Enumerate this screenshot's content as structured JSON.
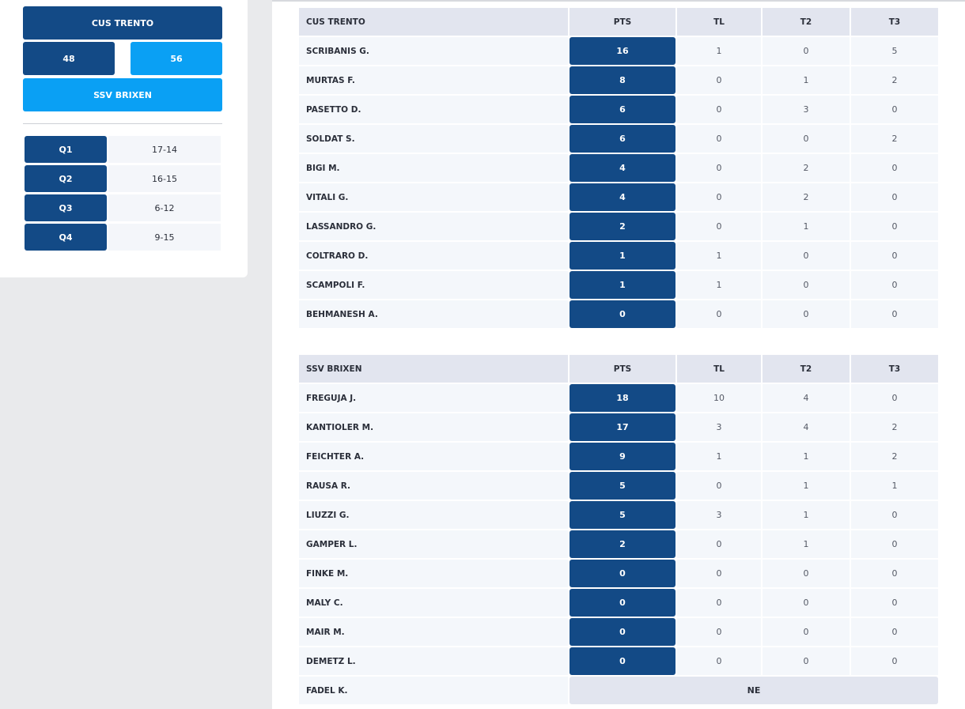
{
  "scoreboard": {
    "home_team": "CUS TRENTO",
    "home_score": "48",
    "away_score": "56",
    "away_team": "SSV BRIXEN",
    "quarters": [
      {
        "label": "Q1",
        "score": "17-14"
      },
      {
        "label": "Q2",
        "score": "16-15"
      },
      {
        "label": "Q3",
        "score": "6-12"
      },
      {
        "label": "Q4",
        "score": "9-15"
      }
    ]
  },
  "tables": [
    {
      "headers": {
        "team": "CUS TRENTO",
        "pts": "PTS",
        "tl": "TL",
        "t2": "T2",
        "t3": "T3"
      },
      "rows": [
        {
          "name": "SCRIBANIS G.",
          "pts": "16",
          "tl": "1",
          "t2": "0",
          "t3": "5"
        },
        {
          "name": "MURTAS F.",
          "pts": "8",
          "tl": "0",
          "t2": "1",
          "t3": "2"
        },
        {
          "name": "PASETTO D.",
          "pts": "6",
          "tl": "0",
          "t2": "3",
          "t3": "0"
        },
        {
          "name": "SOLDAT S.",
          "pts": "6",
          "tl": "0",
          "t2": "0",
          "t3": "2"
        },
        {
          "name": "BIGI M.",
          "pts": "4",
          "tl": "0",
          "t2": "2",
          "t3": "0"
        },
        {
          "name": "VITALI G.",
          "pts": "4",
          "tl": "0",
          "t2": "2",
          "t3": "0"
        },
        {
          "name": "LASSANDRO G.",
          "pts": "2",
          "tl": "0",
          "t2": "1",
          "t3": "0"
        },
        {
          "name": "COLTRARO D.",
          "pts": "1",
          "tl": "1",
          "t2": "0",
          "t3": "0"
        },
        {
          "name": "SCAMPOLI F.",
          "pts": "1",
          "tl": "1",
          "t2": "0",
          "t3": "0"
        },
        {
          "name": "BEHMANESH A.",
          "pts": "0",
          "tl": "0",
          "t2": "0",
          "t3": "0"
        }
      ]
    },
    {
      "headers": {
        "team": "SSV BRIXEN",
        "pts": "PTS",
        "tl": "TL",
        "t2": "T2",
        "t3": "T3"
      },
      "rows": [
        {
          "name": "FREGUJA J.",
          "pts": "18",
          "tl": "10",
          "t2": "4",
          "t3": "0"
        },
        {
          "name": "KANTIOLER M.",
          "pts": "17",
          "tl": "3",
          "t2": "4",
          "t3": "2"
        },
        {
          "name": "FEICHTER A.",
          "pts": "9",
          "tl": "1",
          "t2": "1",
          "t3": "2"
        },
        {
          "name": "RAUSA R.",
          "pts": "5",
          "tl": "0",
          "t2": "1",
          "t3": "1"
        },
        {
          "name": "LIUZZI G.",
          "pts": "5",
          "tl": "3",
          "t2": "1",
          "t3": "0"
        },
        {
          "name": "GAMPER L.",
          "pts": "2",
          "tl": "0",
          "t2": "1",
          "t3": "0"
        },
        {
          "name": "FINKE M.",
          "pts": "0",
          "tl": "0",
          "t2": "0",
          "t3": "0"
        },
        {
          "name": "MALY C.",
          "pts": "0",
          "tl": "0",
          "t2": "0",
          "t3": "0"
        },
        {
          "name": "MAIR M.",
          "pts": "0",
          "tl": "0",
          "t2": "0",
          "t3": "0"
        },
        {
          "name": "DEMETZ L.",
          "pts": "0",
          "tl": "0",
          "t2": "0",
          "t3": "0"
        },
        {
          "name": "FADEL K.",
          "ne": "NE"
        }
      ]
    }
  ]
}
